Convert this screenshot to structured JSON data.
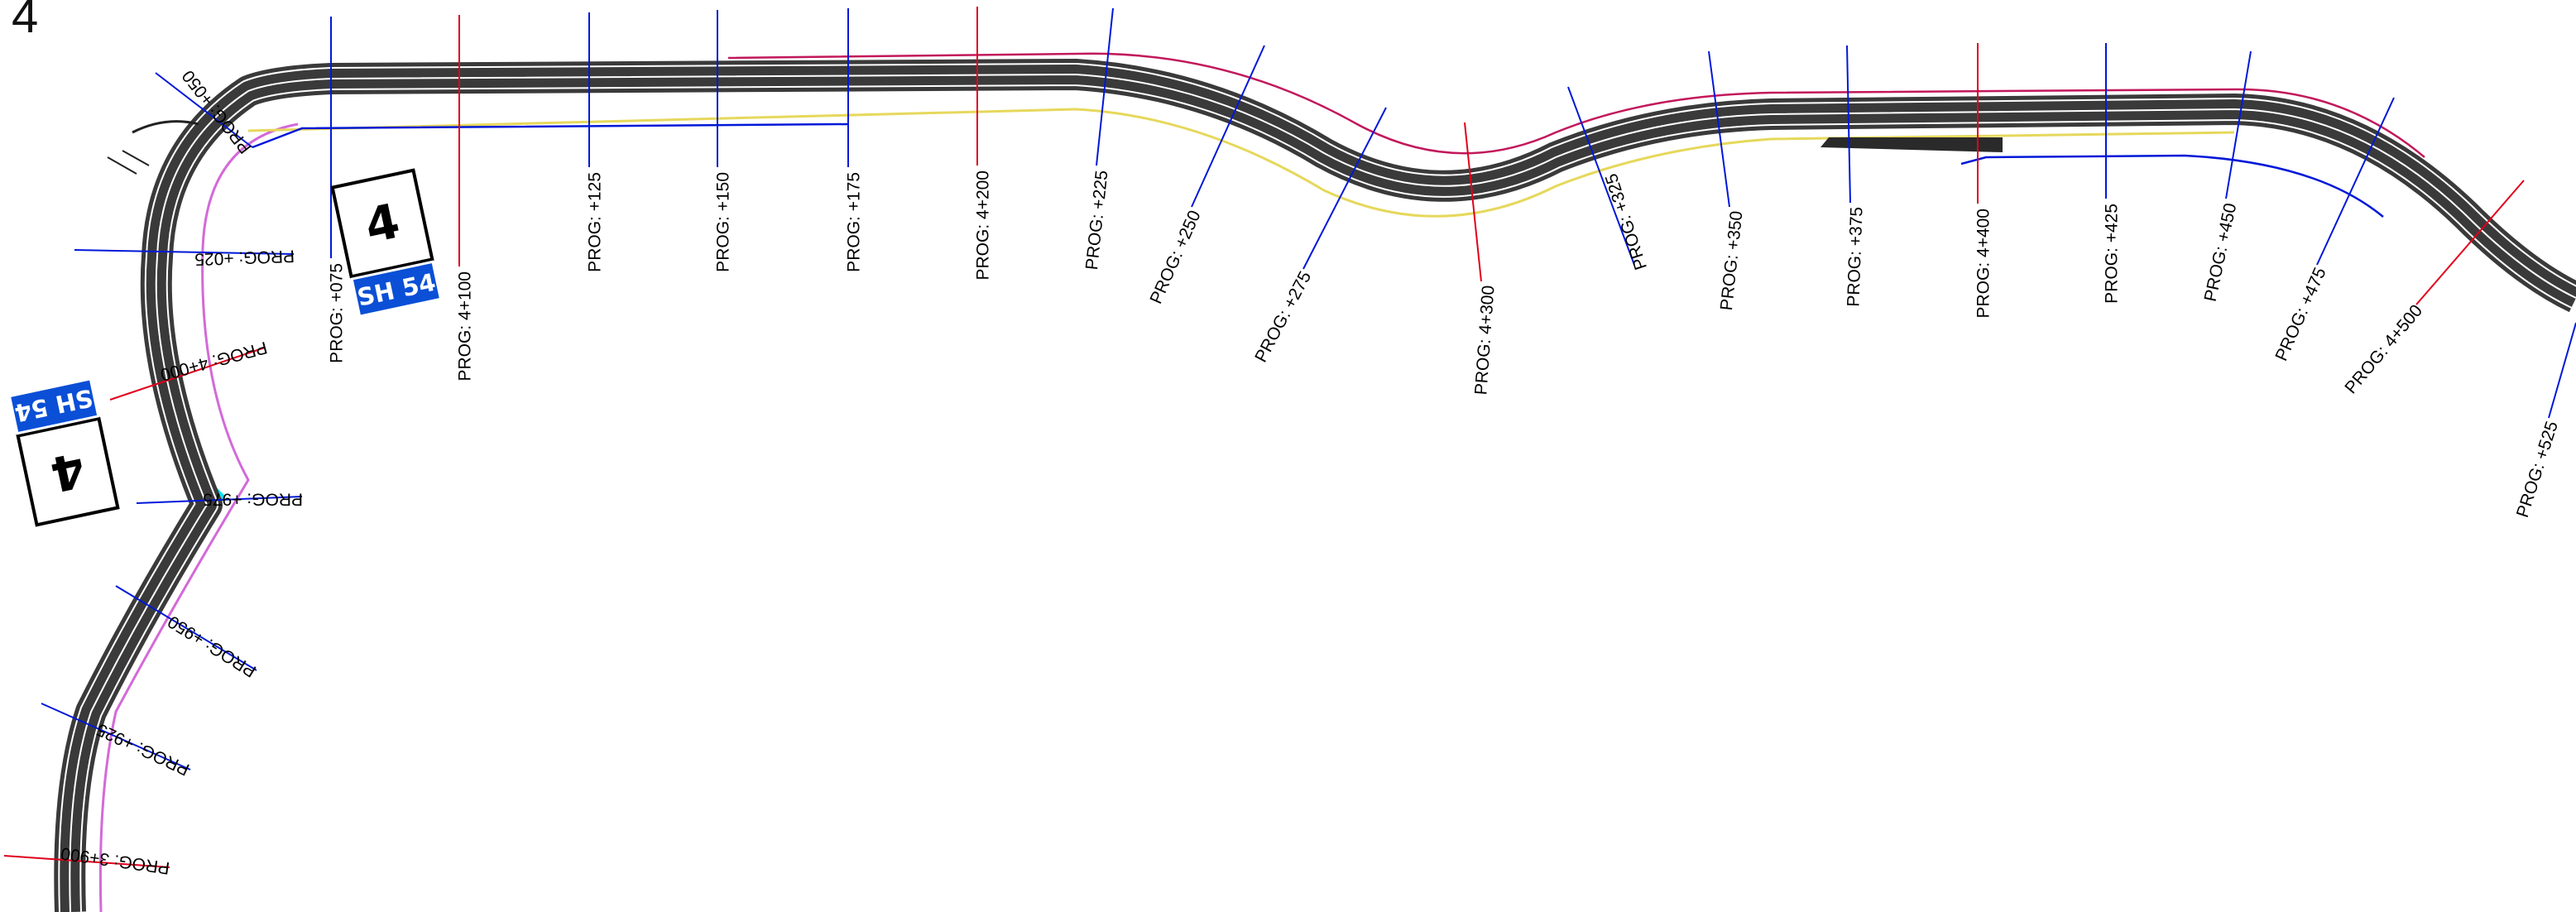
{
  "corner_label": "4",
  "shields": [
    {
      "number": "4",
      "route": "SH 54"
    },
    {
      "number": "4",
      "route": "SH 54"
    }
  ],
  "colors": {
    "pavement": "#3a3a3a",
    "edge_line": "#ffffff",
    "verge_cyan": "#00e5ee",
    "boundary_magenta": "#c2185b",
    "boundary_pink": "#d36ad8",
    "edge_yellow": "#e6d85c",
    "cross_section_blue": "#0018d8",
    "cross_section_red": "#e0001b",
    "shield_blue": "#0a4fd6"
  },
  "chainages": [
    {
      "label": "PROG: 3+900",
      "kind": "major"
    },
    {
      "label": "PROG: +925",
      "kind": "minor"
    },
    {
      "label": "PROG: +950",
      "kind": "minor"
    },
    {
      "label": "PROG: +975",
      "kind": "minor"
    },
    {
      "label": "PROG: 4+000",
      "kind": "major"
    },
    {
      "label": "PROG: +025",
      "kind": "minor"
    },
    {
      "label": "PROG: +050",
      "kind": "minor"
    },
    {
      "label": "PROG: +075",
      "kind": "minor"
    },
    {
      "label": "PROG: 4+100",
      "kind": "major"
    },
    {
      "label": "PROG: +125",
      "kind": "minor"
    },
    {
      "label": "PROG: +150",
      "kind": "minor"
    },
    {
      "label": "PROG: +175",
      "kind": "minor"
    },
    {
      "label": "PROG: 4+200",
      "kind": "major"
    },
    {
      "label": "PROG: +225",
      "kind": "minor"
    },
    {
      "label": "PROG: +250",
      "kind": "minor"
    },
    {
      "label": "PROG: +275",
      "kind": "minor"
    },
    {
      "label": "PROG: 4+300",
      "kind": "major"
    },
    {
      "label": "PROG: +325",
      "kind": "minor"
    },
    {
      "label": "PROG: +350",
      "kind": "minor"
    },
    {
      "label": "PROG: +375",
      "kind": "minor"
    },
    {
      "label": "PROG: 4+400",
      "kind": "major"
    },
    {
      "label": "PROG: +425",
      "kind": "minor"
    },
    {
      "label": "PROG: +450",
      "kind": "minor"
    },
    {
      "label": "PROG: +475",
      "kind": "minor"
    },
    {
      "label": "PROG: 4+500",
      "kind": "major"
    },
    {
      "label": "PROG: +525",
      "kind": "minor"
    }
  ]
}
